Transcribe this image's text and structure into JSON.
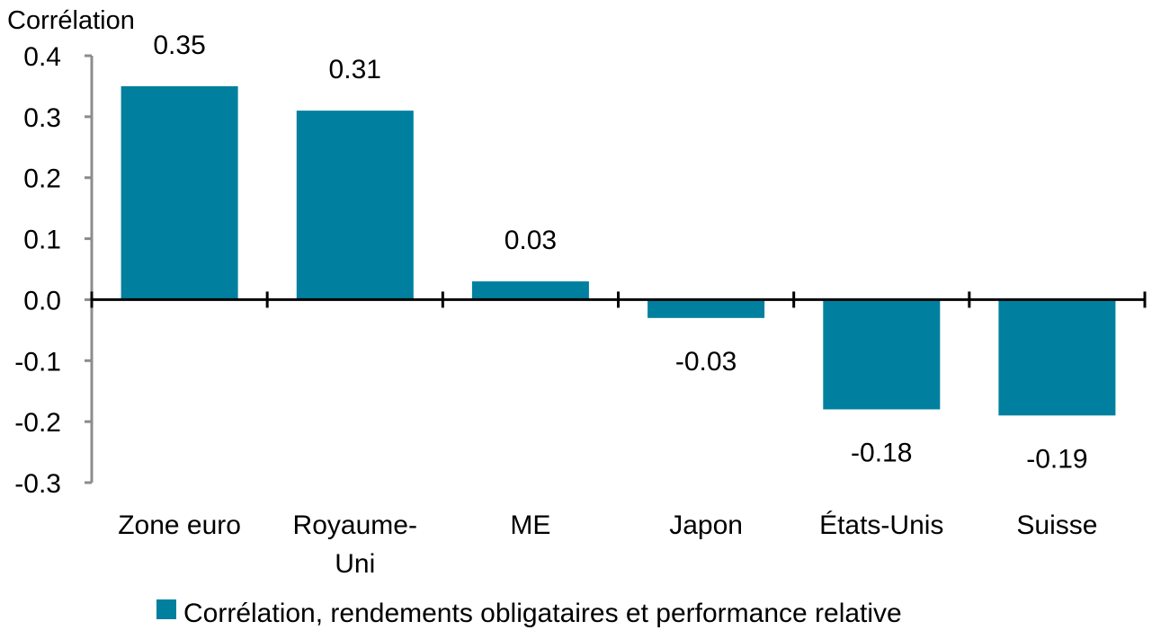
{
  "chart_data": {
    "type": "bar",
    "ylabel": "Corrélation",
    "ylim": [
      -0.3,
      0.4
    ],
    "yticks": [
      "0.4",
      "0.3",
      "0.2",
      "0.1",
      "0.0",
      "-0.1",
      "-0.2",
      "-0.3"
    ],
    "categories": [
      [
        "Zone euro"
      ],
      [
        "Royaume-",
        "Uni"
      ],
      [
        "ME"
      ],
      [
        "Japon"
      ],
      [
        "États-Unis"
      ],
      [
        "Suisse"
      ]
    ],
    "series": [
      {
        "name": "Corrélation, rendements obligataires et performance relative",
        "values": [
          0.35,
          0.31,
          0.03,
          -0.03,
          -0.18,
          -0.19
        ],
        "labels": [
          "0.35",
          "0.31",
          "0.03",
          "-0.03",
          "-0.18",
          "-0.19"
        ],
        "color": "#00809e"
      }
    ],
    "grid": false,
    "legend_position": "bottom"
  }
}
